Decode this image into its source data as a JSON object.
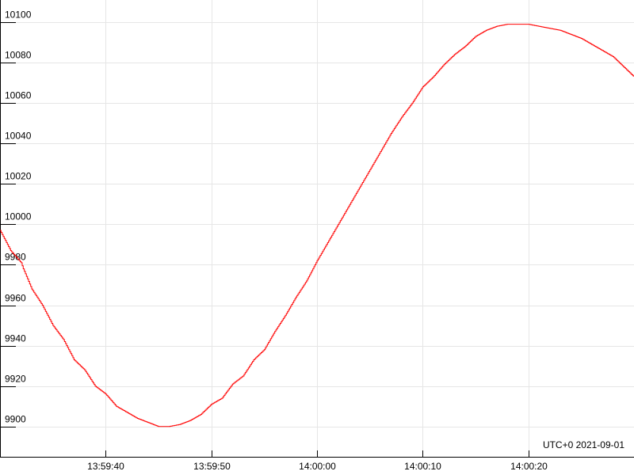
{
  "chart_data": {
    "type": "line",
    "title": "",
    "xlabel": "",
    "ylabel": "",
    "timezone_label": "UTC+0 2021-09-01",
    "x_ticks": [
      "13:59:40",
      "13:59:50",
      "14:00:00",
      "14:00:10",
      "14:00:20"
    ],
    "x_tick_seconds": [
      -20,
      -10,
      0,
      10,
      20
    ],
    "xlim_seconds": [
      -30,
      30
    ],
    "y_ticks": [
      9900,
      9920,
      9940,
      9960,
      9980,
      10000,
      10020,
      10040,
      10060,
      10080,
      10100
    ],
    "ylim": [
      9885,
      10111
    ],
    "grid": true,
    "series": [
      {
        "color": "#ff0000",
        "step": true,
        "x": [
          -30.0,
          -29.0,
          -28.0,
          -27.8,
          -27.0,
          -26.0,
          -25.0,
          -24.0,
          -23.0,
          -22.0,
          -21.0,
          -20.0,
          -19.0,
          -18.0,
          -17.0,
          -16.0,
          -15.0,
          -14.0,
          -13.0,
          -12.0,
          -11.0,
          -10.0,
          -9.0,
          -8.0,
          -7.0,
          -6.0,
          -5.0,
          -4.0,
          -3.0,
          -2.0,
          -1.0,
          0.0,
          1.0,
          2.0,
          3.0,
          4.0,
          5.0,
          6.0,
          7.0,
          8.0,
          9.0,
          10.0,
          11.0,
          12.0,
          13.0,
          14.0,
          15.0,
          16.0,
          17.0,
          18.0,
          19.0,
          20.0,
          21.0,
          22.0,
          23.0,
          24.0,
          25.0,
          26.0,
          27.0,
          28.0,
          29.0,
          30.0
        ],
        "y": [
          9997,
          9987,
          9981,
          9978,
          9968,
          9960,
          9950,
          9943,
          9933,
          9928,
          9920,
          9916,
          9910,
          9907,
          9904,
          9902,
          9900,
          9900,
          9901,
          9903,
          9906,
          9911,
          9914,
          9921,
          9925,
          9933,
          9938,
          9947,
          9955,
          9964,
          9972,
          9982,
          9991,
          10000,
          10009,
          10018,
          10027,
          10036,
          10045,
          10053,
          10060,
          10068,
          10073,
          10079,
          10084,
          10088,
          10093,
          10096,
          10098,
          10099,
          10099,
          10099,
          10098,
          10097,
          10096,
          10094,
          10092,
          10089,
          10086,
          10083,
          10078,
          10073
        ]
      }
    ]
  }
}
